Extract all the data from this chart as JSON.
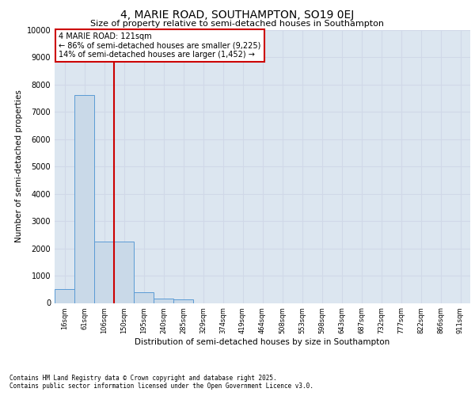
{
  "title": "4, MARIE ROAD, SOUTHAMPTON, SO19 0EJ",
  "subtitle": "Size of property relative to semi-detached houses in Southampton",
  "xlabel": "Distribution of semi-detached houses by size in Southampton",
  "ylabel": "Number of semi-detached properties",
  "categories": [
    "16sqm",
    "61sqm",
    "106sqm",
    "150sqm",
    "195sqm",
    "240sqm",
    "285sqm",
    "329sqm",
    "374sqm",
    "419sqm",
    "464sqm",
    "508sqm",
    "553sqm",
    "598sqm",
    "643sqm",
    "687sqm",
    "732sqm",
    "777sqm",
    "822sqm",
    "866sqm",
    "911sqm"
  ],
  "values": [
    500,
    7600,
    2250,
    2250,
    380,
    155,
    120,
    0,
    0,
    0,
    0,
    0,
    0,
    0,
    0,
    0,
    0,
    0,
    0,
    0,
    0
  ],
  "bar_color": "#c9d9e8",
  "bar_edge_color": "#5b9bd5",
  "grid_color": "#d0d8e8",
  "background_color": "#dce6f0",
  "vline_pos": 2.5,
  "vline_color": "#cc0000",
  "annotation_title": "4 MARIE ROAD: 121sqm",
  "annotation_line1": "← 86% of semi-detached houses are smaller (9,225)",
  "annotation_line2": "14% of semi-detached houses are larger (1,452) →",
  "annotation_box_color": "#ffffff",
  "annotation_box_edge": "#cc0000",
  "ylim": [
    0,
    10000
  ],
  "yticks": [
    0,
    1000,
    2000,
    3000,
    4000,
    5000,
    6000,
    7000,
    8000,
    9000,
    10000
  ],
  "footer1": "Contains HM Land Registry data © Crown copyright and database right 2025.",
  "footer2": "Contains public sector information licensed under the Open Government Licence v3.0."
}
